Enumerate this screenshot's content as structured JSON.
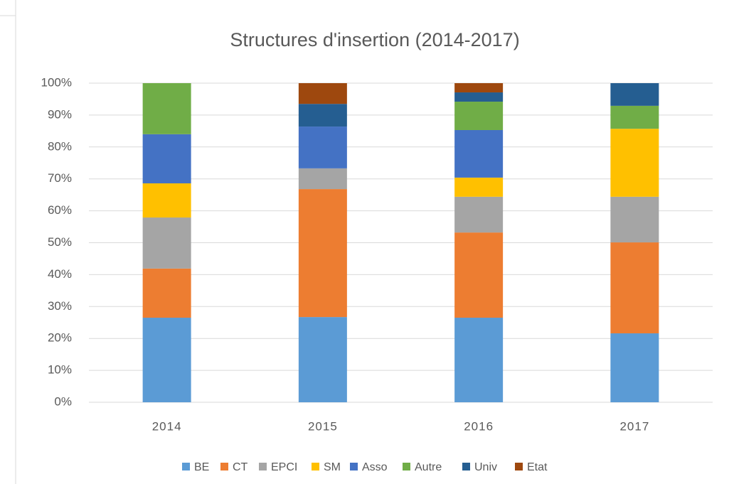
{
  "chart_data": {
    "type": "stacked_bar",
    "title": "Structures d'insertion (2014-2017)",
    "categories": [
      "2014",
      "2015",
      "2016",
      "2017"
    ],
    "series": [
      {
        "name": "BE",
        "color": "#5b9bd5",
        "values": [
          26.5,
          26.7,
          26.5,
          21.6
        ]
      },
      {
        "name": "CT",
        "color": "#ed7d31",
        "values": [
          15.4,
          40.1,
          26.7,
          28.5
        ]
      },
      {
        "name": "EPCI",
        "color": "#a5a5a5",
        "values": [
          16.0,
          6.5,
          11.2,
          14.3
        ]
      },
      {
        "name": "SM",
        "color": "#ffc000",
        "values": [
          10.7,
          0,
          6.0,
          21.3
        ]
      },
      {
        "name": "Asso",
        "color": "#4472c4",
        "values": [
          15.4,
          13.1,
          14.9,
          0
        ]
      },
      {
        "name": "Autre",
        "color": "#70ad47",
        "values": [
          16.0,
          0,
          8.9,
          7.2
        ]
      },
      {
        "name": "Univ",
        "color": "#255e91",
        "values": [
          0,
          7.1,
          2.9,
          7.1
        ]
      },
      {
        "name": "Etat",
        "color": "#9e480e",
        "values": [
          0,
          6.5,
          2.9,
          0
        ]
      }
    ],
    "ylim": [
      0,
      100
    ],
    "yticks": [
      {
        "value": 0,
        "label": "0%"
      },
      {
        "value": 10,
        "label": "10%"
      },
      {
        "value": 20,
        "label": "20%"
      },
      {
        "value": 30,
        "label": "30%"
      },
      {
        "value": 40,
        "label": "40%"
      },
      {
        "value": 50,
        "label": "50%"
      },
      {
        "value": 60,
        "label": "60%"
      },
      {
        "value": 70,
        "label": "70%"
      },
      {
        "value": 80,
        "label": "80%"
      },
      {
        "value": 90,
        "label": "90%"
      },
      {
        "value": 100,
        "label": "100%"
      }
    ],
    "grid": true,
    "legend": "bottom"
  }
}
